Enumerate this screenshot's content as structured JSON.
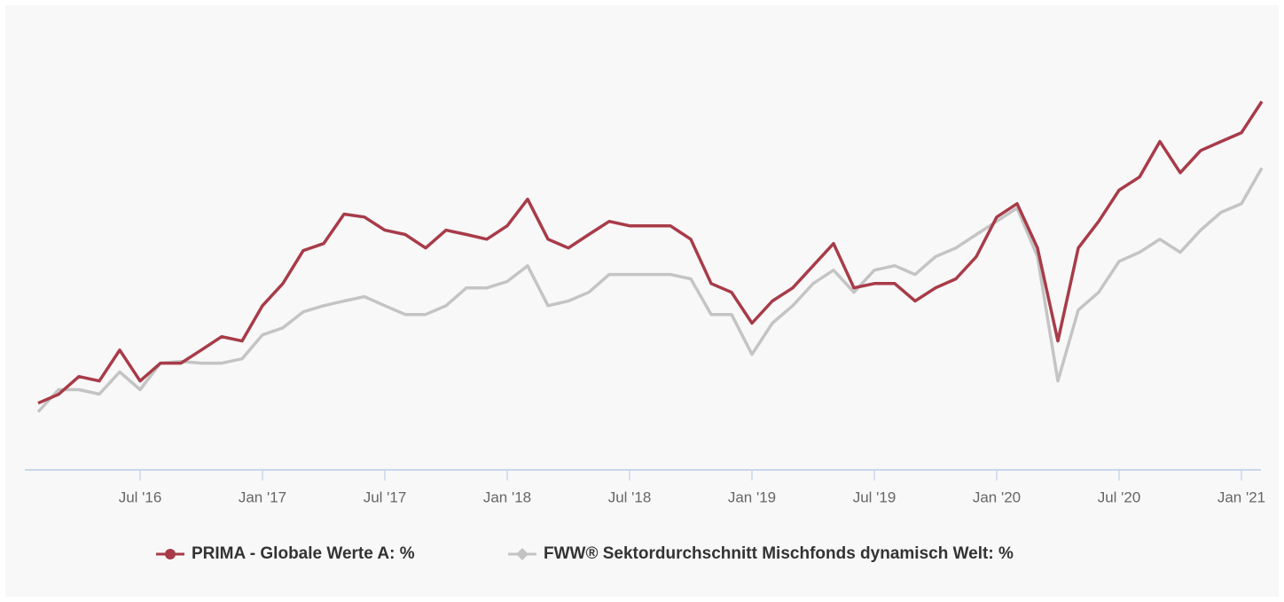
{
  "chart_data": {
    "type": "line",
    "x": [
      "2016-02",
      "2016-03",
      "2016-04",
      "2016-05",
      "2016-06",
      "2016-07",
      "2016-08",
      "2016-09",
      "2016-10",
      "2016-11",
      "2016-12",
      "2017-01",
      "2017-02",
      "2017-03",
      "2017-04",
      "2017-05",
      "2017-06",
      "2017-07",
      "2017-08",
      "2017-09",
      "2017-10",
      "2017-11",
      "2017-12",
      "2018-01",
      "2018-02",
      "2018-03",
      "2018-04",
      "2018-05",
      "2018-06",
      "2018-07",
      "2018-08",
      "2018-09",
      "2018-10",
      "2018-11",
      "2018-12",
      "2019-01",
      "2019-02",
      "2019-03",
      "2019-04",
      "2019-05",
      "2019-06",
      "2019-07",
      "2019-08",
      "2019-09",
      "2019-10",
      "2019-11",
      "2019-12",
      "2020-01",
      "2020-02",
      "2020-03",
      "2020-04",
      "2020-05",
      "2020-06",
      "2020-07",
      "2020-08",
      "2020-09",
      "2020-10",
      "2020-11",
      "2020-12",
      "2021-01",
      "2021-02"
    ],
    "series": [
      {
        "name": "PRIMA - Globale Werte A: %",
        "color": "#a83b48",
        "values": [
          0.9,
          3.9,
          10,
          8.5,
          19.1,
          8.5,
          14.6,
          14.6,
          19.1,
          23.7,
          22.2,
          34.3,
          41.9,
          53.2,
          55.6,
          65.7,
          64.7,
          60.2,
          58.7,
          54.1,
          60.2,
          58.7,
          57.1,
          61.7,
          70.8,
          57.1,
          54.1,
          58.7,
          63.2,
          61.7,
          61.7,
          61.7,
          57.1,
          41.9,
          38.9,
          28.3,
          35.9,
          40.4,
          48.0,
          55.6,
          40.4,
          41.9,
          41.9,
          35.9,
          40.4,
          43.5,
          51.1,
          64.7,
          69.3,
          54.1,
          22.2,
          54.1,
          63.2,
          73.9,
          78.4,
          90.6,
          79.9,
          87.5,
          90.6,
          93.6,
          104.3
        ]
      },
      {
        "name": "FWW® Sektordurchschnitt Mischfonds dynamisch Welt: %",
        "color": "#c4c4c4",
        "values": [
          -2.1,
          5.5,
          5.5,
          4.0,
          11.6,
          5.5,
          14.6,
          15.2,
          14.6,
          14.6,
          16.1,
          24.3,
          26.7,
          32.2,
          34.3,
          35.9,
          37.4,
          34.3,
          31.3,
          31.3,
          34.3,
          40.4,
          40.4,
          42.6,
          48.0,
          34.3,
          35.9,
          38.9,
          45.0,
          45.0,
          45.0,
          45.0,
          43.5,
          31.3,
          31.3,
          17.6,
          28.3,
          34.3,
          41.9,
          46.5,
          38.9,
          46.5,
          48.0,
          45.0,
          51.1,
          54.1,
          58.7,
          63.2,
          67.8,
          51.1,
          8.5,
          32.8,
          38.9,
          49.5,
          52.6,
          57.1,
          52.6,
          60.2,
          66.3,
          69.3,
          81.5
        ]
      }
    ],
    "xlim": [
      "2016-01",
      "2021-02"
    ],
    "xticks": [
      {
        "value": "2016-07",
        "label": "Jul '16"
      },
      {
        "value": "2017-01",
        "label": "Jan '17"
      },
      {
        "value": "2017-07",
        "label": "Jul '17"
      },
      {
        "value": "2018-01",
        "label": "Jan '18"
      },
      {
        "value": "2018-07",
        "label": "Jul '18"
      },
      {
        "value": "2019-01",
        "label": "Jan '19"
      },
      {
        "value": "2019-07",
        "label": "Jul '19"
      },
      {
        "value": "2020-01",
        "label": "Jan '20"
      },
      {
        "value": "2020-07",
        "label": "Jul '20"
      },
      {
        "value": "2021-01",
        "label": "Jan '21"
      }
    ],
    "ylim": [
      -22,
      130
    ]
  }
}
